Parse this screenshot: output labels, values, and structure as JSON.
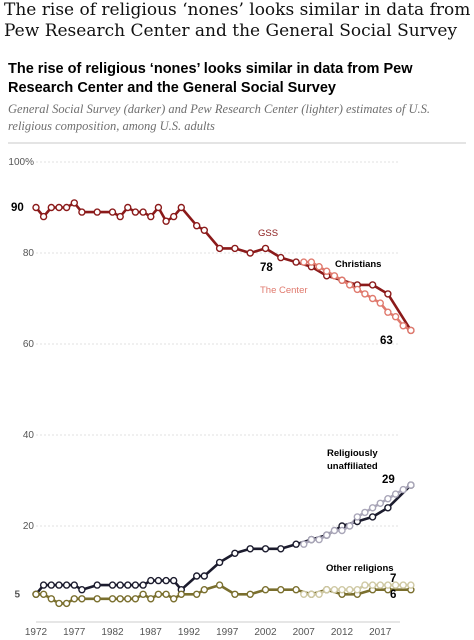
{
  "page": {
    "heading": "The rise of religious ‘nones’ looks similar in data from Pew Research Center and the General Social Survey"
  },
  "chart_data": {
    "type": "line",
    "title": "The rise of religious ‘nones’ looks similar in data from Pew Research Center and the General Social Survey",
    "subtitle": "General Social Survey (darker) and Pew Research Center (lighter) estimates of U.S. religious composition, among U.S. adults",
    "xlabel": "",
    "ylabel": "",
    "xlim": [
      1972,
      2021
    ],
    "ylim": [
      0,
      100
    ],
    "x_ticks": [
      "1972",
      "1977",
      "1982",
      "1987",
      "1992",
      "1997",
      "2002",
      "2007",
      "2012",
      "2017"
    ],
    "y_ticks": [
      "100%",
      "80",
      "60",
      "40",
      "20",
      "5"
    ],
    "grid": true,
    "legend": "inline annotations",
    "annotations": {
      "gss": "GSS",
      "center": "The Center",
      "christians": "Christians",
      "unaffiliated_line1": "Religiously",
      "unaffiliated_line2": "unaffiliated",
      "other": "Other religions"
    },
    "value_labels": {
      "christians_start": "90",
      "christians_2006": "78",
      "christians_end": "63",
      "unaffiliated_end": "29",
      "other_center_end": "7",
      "other_gss_end": "6"
    },
    "series": [
      {
        "group": "Christians",
        "source": "GSS",
        "color": "#8b1a1a",
        "x": [
          1972,
          1973,
          1974,
          1975,
          1976,
          1977,
          1978,
          1980,
          1982,
          1983,
          1984,
          1985,
          1986,
          1987,
          1988,
          1989,
          1990,
          1991,
          1993,
          1994,
          1996,
          1998,
          2000,
          2002,
          2004,
          2006,
          2008,
          2010,
          2012,
          2014,
          2016,
          2018,
          2021
        ],
        "y": [
          90,
          88,
          90,
          90,
          90,
          91,
          89,
          89,
          89,
          88,
          90,
          89,
          89,
          88,
          90,
          87,
          88,
          90,
          86,
          85,
          81,
          81,
          80,
          81,
          79,
          78,
          77,
          75,
          74,
          73,
          73,
          71,
          63
        ]
      },
      {
        "group": "Christians",
        "source": "Pew Research Center",
        "color": "#e07a6e",
        "x": [
          2007,
          2008,
          2009,
          2010,
          2011,
          2012,
          2013,
          2014,
          2015,
          2016,
          2017,
          2018,
          2019,
          2020,
          2021
        ],
        "y": [
          78,
          78,
          77,
          76,
          75,
          74,
          73,
          72,
          71,
          70,
          69,
          67,
          66,
          64,
          63
        ]
      },
      {
        "group": "Religiously unaffiliated",
        "source": "GSS",
        "color": "#1c1c2e",
        "x": [
          1972,
          1973,
          1974,
          1975,
          1976,
          1977,
          1978,
          1980,
          1982,
          1983,
          1984,
          1985,
          1986,
          1987,
          1988,
          1989,
          1990,
          1991,
          1993,
          1994,
          1996,
          1998,
          2000,
          2002,
          2004,
          2006,
          2008,
          2010,
          2012,
          2014,
          2016,
          2018,
          2021
        ],
        "y": [
          5,
          7,
          7,
          7,
          7,
          7,
          6,
          7,
          7,
          7,
          7,
          7,
          7,
          8,
          8,
          8,
          8,
          6,
          9,
          9,
          12,
          14,
          15,
          15,
          15,
          16,
          17,
          18,
          20,
          21,
          22,
          24,
          29
        ]
      },
      {
        "group": "Religiously unaffiliated",
        "source": "Pew Research Center",
        "color": "#a9a6b8",
        "x": [
          2007,
          2008,
          2009,
          2010,
          2011,
          2012,
          2013,
          2014,
          2015,
          2016,
          2017,
          2018,
          2019,
          2020,
          2021
        ],
        "y": [
          16,
          17,
          17,
          18,
          19,
          19,
          20,
          22,
          23,
          24,
          25,
          26,
          27,
          28,
          29
        ]
      },
      {
        "group": "Other religions",
        "source": "GSS",
        "color": "#7a6f2e",
        "x": [
          1972,
          1973,
          1974,
          1975,
          1976,
          1977,
          1978,
          1980,
          1982,
          1983,
          1984,
          1985,
          1986,
          1987,
          1988,
          1989,
          1990,
          1991,
          1993,
          1994,
          1996,
          1998,
          2000,
          2002,
          2004,
          2006,
          2008,
          2010,
          2012,
          2014,
          2016,
          2018,
          2021
        ],
        "y": [
          5,
          5,
          4,
          3,
          3,
          4,
          4,
          4,
          4,
          4,
          4,
          4,
          5,
          4,
          5,
          5,
          4,
          5,
          5,
          6,
          7,
          5,
          5,
          6,
          6,
          6,
          5,
          6,
          5,
          5,
          6,
          6,
          6
        ]
      },
      {
        "group": "Other religions",
        "source": "Pew Research Center",
        "color": "#cfc9a4",
        "x": [
          2007,
          2008,
          2009,
          2010,
          2011,
          2012,
          2013,
          2014,
          2015,
          2016,
          2017,
          2018,
          2019,
          2020,
          2021
        ],
        "y": [
          5,
          5,
          5,
          6,
          6,
          6,
          6,
          6,
          7,
          7,
          7,
          7,
          7,
          7,
          7
        ]
      }
    ]
  }
}
